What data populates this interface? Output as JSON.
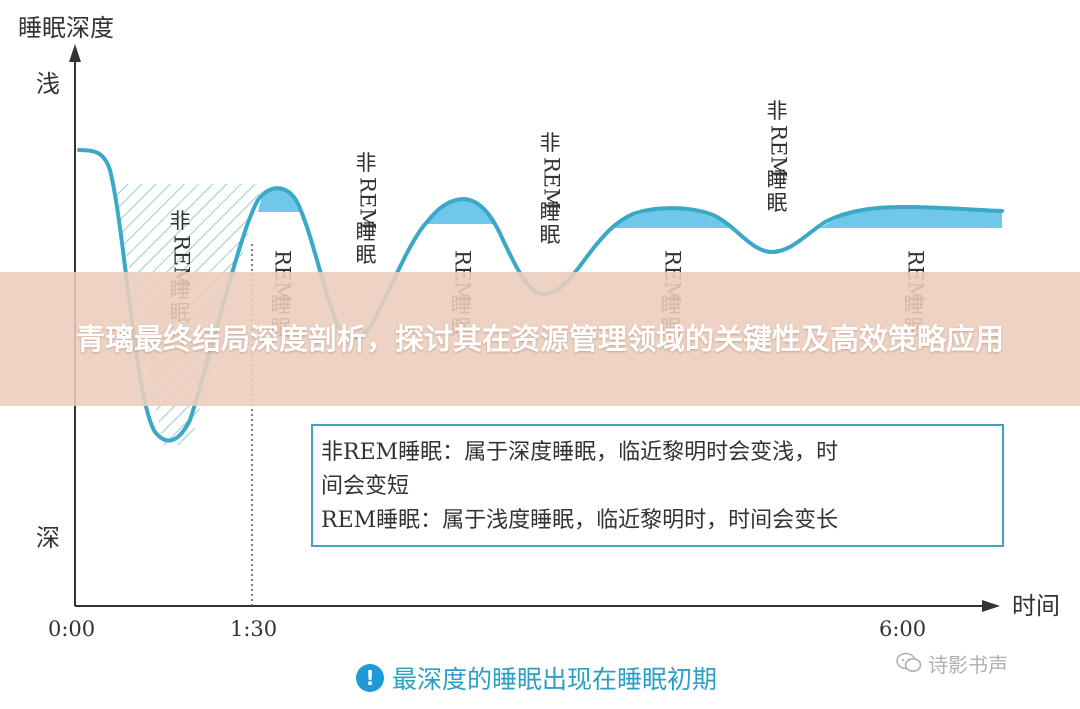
{
  "diagram": {
    "y_axis_title": "睡眠深度",
    "y_top_label": "浅",
    "y_bottom_label": "深",
    "x_axis_title": "时间",
    "x_ticks": [
      "0:00",
      "1:30",
      "6:00"
    ],
    "phase_labels": {
      "nrem": "非REM睡眠",
      "rem": "REM睡眠"
    },
    "legend": {
      "line1": "非REM睡眠：属于深度睡眠，临近黎明时会变浅，时",
      "line2": "间会变短",
      "line3": "REM睡眠：属于浅度睡眠，临近黎明时，时间会变长"
    },
    "footnote": "最深度的睡眠出现在睡眠初期",
    "colors": {
      "curve": "#3aa8c6",
      "rem_fill": "#6fc8ea",
      "hatch": "#8fd0cf",
      "axis": "#333333",
      "legend_border": "#3aa8b8"
    }
  },
  "banner": {
    "title": "青璃最终结局深度剖析，探讨其在资源管理领域的关键性及高效策略应用"
  },
  "watermark": {
    "text": "诗影书声",
    "icon": "wechat-icon"
  }
}
